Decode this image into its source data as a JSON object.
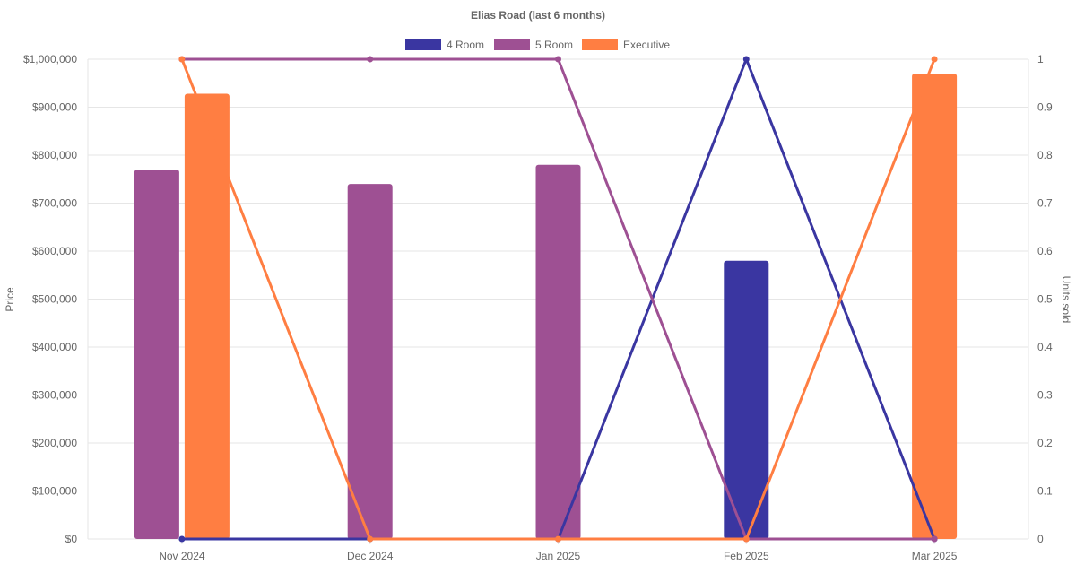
{
  "chart_data": {
    "type": "bar",
    "title": "Elias Road (last 6 months)",
    "categories": [
      "Nov 2024",
      "Dec 2024",
      "Jan 2025",
      "Feb 2025",
      "Mar 2025"
    ],
    "y_left": {
      "label": "Price",
      "range": [
        0,
        1000000
      ],
      "ticks": [
        "$0",
        "$100,000",
        "$200,000",
        "$300,000",
        "$400,000",
        "$500,000",
        "$600,000",
        "$700,000",
        "$800,000",
        "$900,000",
        "$1,000,000"
      ]
    },
    "y_right": {
      "label": "Units sold",
      "range": [
        0,
        1
      ],
      "ticks": [
        "0",
        "0.1",
        "0.2",
        "0.3",
        "0.4",
        "0.5",
        "0.6",
        "0.7",
        "0.8",
        "0.9",
        "1"
      ]
    },
    "grid": true,
    "legend_position": "top",
    "series": [
      {
        "name": "4 Room",
        "color": "#3a36a1",
        "price": [
          null,
          null,
          null,
          580000,
          null
        ],
        "units": [
          0,
          0,
          0,
          1,
          0
        ]
      },
      {
        "name": "5 Room",
        "color": "#9e5093",
        "price": [
          770000,
          740000,
          780000,
          null,
          null
        ],
        "units": [
          1,
          1,
          1,
          0,
          0
        ]
      },
      {
        "name": "Executive",
        "color": "#ff7e42",
        "price": [
          928000,
          null,
          null,
          null,
          970000
        ],
        "units": [
          1,
          0,
          0,
          0,
          1
        ]
      }
    ]
  }
}
